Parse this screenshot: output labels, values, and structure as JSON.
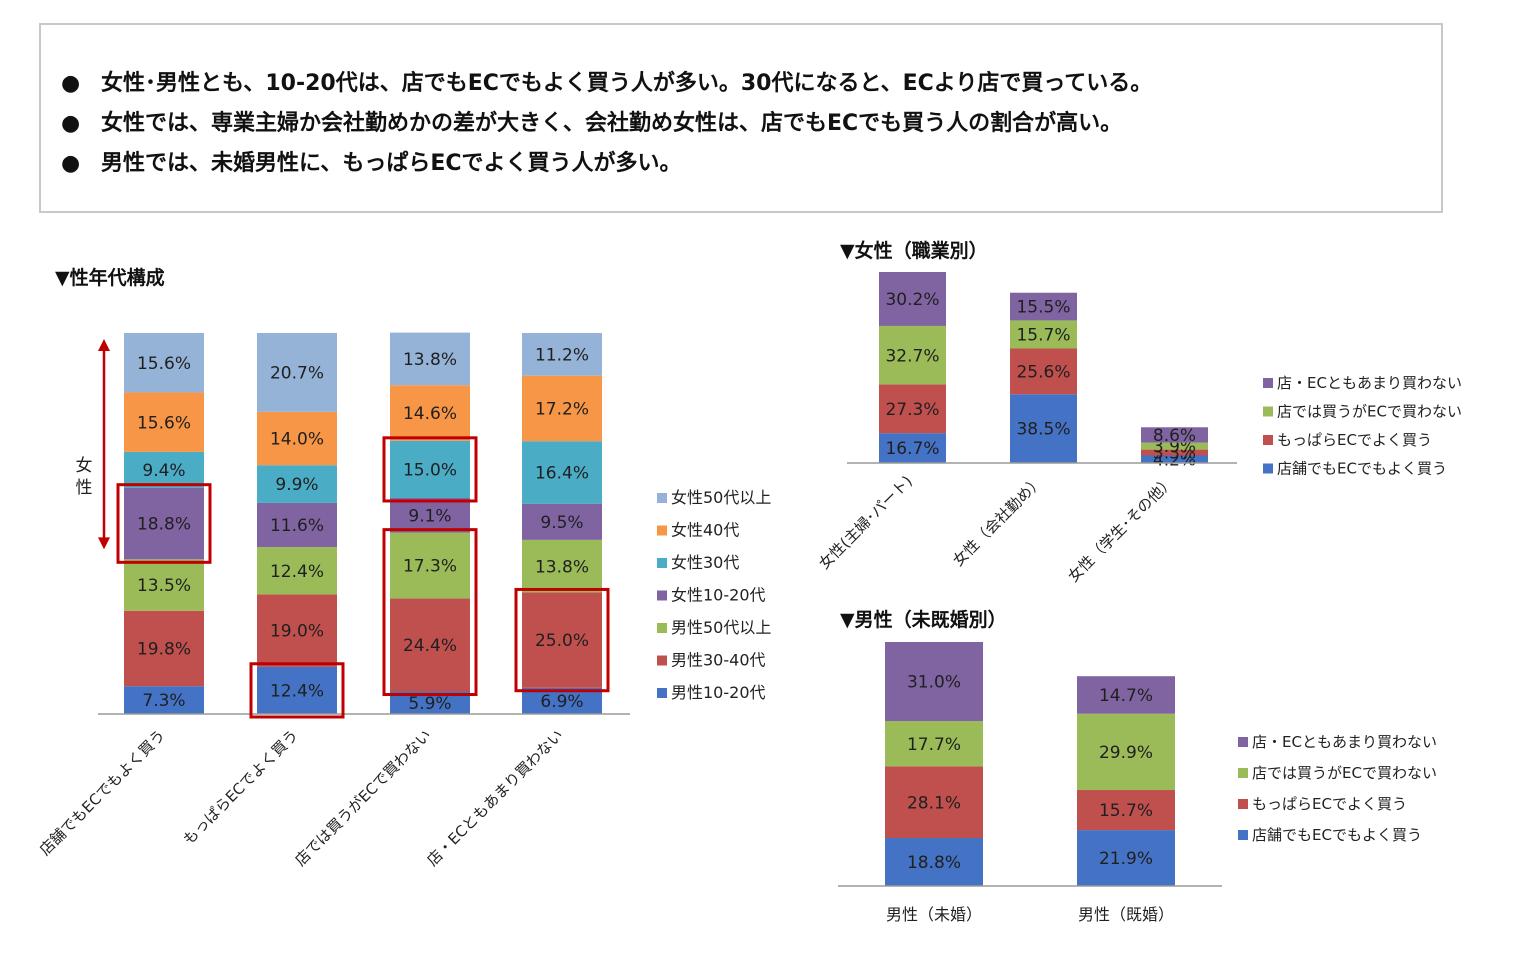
{
  "summary": {
    "bullets": [
      "女性･男性とも、10-20代は、店でもECでもよく買う人が多い。30代になると、ECより店で買っている。",
      "女性では、専業主婦か会社勤めかの差が大きく、会社勤め女性は、店でもECでも買う人の割合が高い。",
      "男性では、未婚男性に、もっぱらECでよく買う人が多い。"
    ]
  },
  "chart_data": [
    {
      "type": "bar",
      "stacked": true,
      "title": "▼性年代構成",
      "side_label": "女性",
      "categories": [
        "店舗でもECでもよく買う",
        "もっぱらECでよく買う",
        "店では買うがECで買わない",
        "店・ECともあまり買わない"
      ],
      "series": [
        {
          "name": "男性10-20代",
          "color": "#4472C4",
          "values": [
            7.3,
            12.4,
            5.9,
            6.9
          ]
        },
        {
          "name": "男性30-40代",
          "color": "#C0504D",
          "values": [
            19.8,
            19.0,
            24.4,
            25.0
          ]
        },
        {
          "name": "男性50代以上",
          "color": "#9BBB59",
          "values": [
            13.5,
            12.4,
            17.3,
            13.8
          ]
        },
        {
          "name": "女性10-20代",
          "color": "#8064A2",
          "values": [
            18.8,
            11.6,
            9.1,
            9.5
          ]
        },
        {
          "name": "女性30代",
          "color": "#4BACC6",
          "values": [
            9.4,
            9.9,
            15.0,
            16.4
          ]
        },
        {
          "name": "女性40代",
          "color": "#F79646",
          "values": [
            15.6,
            14.0,
            14.6,
            17.2
          ]
        },
        {
          "name": "女性50代以上",
          "color": "#95B3D7",
          "values": [
            15.6,
            20.7,
            13.8,
            11.2
          ]
        }
      ],
      "labels": [
        [
          "7.3%",
          "19.8%",
          "13.5%",
          "18.8%",
          "9.4%",
          "15.6%",
          "15.6%"
        ],
        [
          "12.4%",
          "19.0%",
          "12.4%",
          "11.6%",
          "9.9%",
          "14.0%",
          "20.7%"
        ],
        [
          "5.9%",
          "24.4%",
          "17.3%",
          "9.1%",
          "15.0%",
          "14.6%",
          "13.8%"
        ],
        [
          "6.9%",
          "25.0%",
          "13.8%",
          "9.5%",
          "16.4%",
          "17.2%",
          "11.2%"
        ]
      ],
      "highlights": [
        [
          0,
          3
        ],
        [
          1,
          0
        ],
        [
          2,
          4
        ],
        [
          2,
          1,
          2
        ],
        [
          3,
          1
        ]
      ],
      "legend": "right",
      "highlight_color": "#C00000"
    },
    {
      "type": "bar",
      "stacked": true,
      "title": "▼女性（職業別）",
      "categories": [
        "女性(主婦･パート)",
        "女性（会社勤め）",
        "女性（学生･その他）"
      ],
      "series": [
        {
          "name": "店舗でもECでもよく買う",
          "color": "#4472C4",
          "values": [
            16.7,
            38.5,
            4.2
          ]
        },
        {
          "name": "もっぱらECでよく買う",
          "color": "#C0504D",
          "values": [
            27.3,
            25.6,
            3.3
          ]
        },
        {
          "name": "店では買うがECで買わない",
          "color": "#9BBB59",
          "values": [
            32.7,
            15.7,
            3.9
          ]
        },
        {
          "name": "店・ECともあまり買わない",
          "color": "#8064A2",
          "values": [
            30.2,
            15.5,
            8.6
          ]
        }
      ],
      "labels": [
        [
          "16.7%",
          "27.3%",
          "32.7%",
          "30.2%"
        ],
        [
          "38.5%",
          "25.6%",
          "15.7%",
          "15.5%"
        ],
        [
          "4.2%",
          "3.3%",
          "3.9%",
          "8.6%"
        ]
      ],
      "legend": "right"
    },
    {
      "type": "bar",
      "stacked": true,
      "title": "▼男性（未既婚別）",
      "categories": [
        "男性（未婚）",
        "男性（既婚）"
      ],
      "series": [
        {
          "name": "店舗でもECでもよく買う",
          "color": "#4472C4",
          "values": [
            18.8,
            21.9
          ]
        },
        {
          "name": "もっぱらECでよく買う",
          "color": "#C0504D",
          "values": [
            28.1,
            15.7
          ]
        },
        {
          "name": "店では買うがECで買わない",
          "color": "#9BBB59",
          "values": [
            17.7,
            29.9
          ]
        },
        {
          "name": "店・ECともあまり買わない",
          "color": "#8064A2",
          "values": [
            31.0,
            14.7
          ]
        }
      ],
      "labels": [
        [
          "18.8%",
          "28.1%",
          "17.7%",
          "31.0%"
        ],
        [
          "21.9%",
          "15.7%",
          "29.9%",
          "14.7%"
        ]
      ],
      "legend": "right"
    }
  ]
}
